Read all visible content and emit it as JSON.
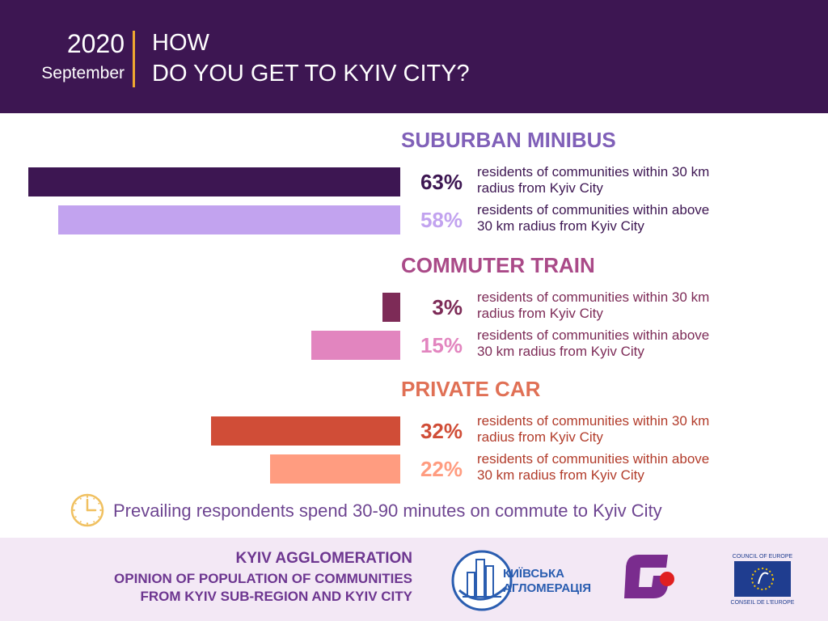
{
  "header": {
    "year": "2020",
    "month": "September",
    "title_line1": "HOW",
    "title_line2": "DO YOU GET TO KYIV CITY?"
  },
  "chart_data": {
    "type": "bar",
    "orientation": "horizontal",
    "groups": [
      {
        "title": "SUBURBAN MINIBUS",
        "title_color": "#8060b8",
        "items": [
          {
            "value": 63,
            "label": "63%",
            "desc1": "residents of communities within 30 km",
            "desc2": "radius from Kyiv City",
            "color": "#3d1652",
            "pct_color": "#3d1652",
            "desc_color": "#3d1652"
          },
          {
            "value": 58,
            "label": "58%",
            "desc1": "residents of communities within above",
            "desc2": "30 km radius from Kyiv City",
            "color": "#c2a3ef",
            "pct_color": "#c2a3ef",
            "desc_color": "#3d1652"
          }
        ]
      },
      {
        "title": "COMMUTER TRAIN",
        "title_color": "#aa4a88",
        "items": [
          {
            "value": 3,
            "label": "3%",
            "desc1": "residents of communities within 30 km",
            "desc2": "radius from Kyiv City",
            "color": "#7d2b57",
            "pct_color": "#7d2b57",
            "desc_color": "#7d2b57"
          },
          {
            "value": 15,
            "label": "15%",
            "desc1": "residents of communities within above",
            "desc2": "30 km radius from Kyiv City",
            "color": "#e285bf",
            "pct_color": "#e285bf",
            "desc_color": "#7d2b57"
          }
        ]
      },
      {
        "title": "PRIVATE CAR",
        "title_color": "#e07055",
        "items": [
          {
            "value": 32,
            "label": "32%",
            "desc1": "residents of communities within 30 km",
            "desc2": "radius from Kyiv City",
            "color": "#d04d37",
            "pct_color": "#d04d37",
            "desc_color": "#b23c2b"
          },
          {
            "value": 22,
            "label": "22%",
            "desc1": "residents of communities within above",
            "desc2": "30 km radius from Kyiv City",
            "color": "#ff9c80",
            "pct_color": "#ff9c80",
            "desc_color": "#b23c2b"
          }
        ]
      }
    ],
    "xlim": [
      0,
      100
    ]
  },
  "note": {
    "icon": "clock-icon",
    "text": "Prevailing respondents spend 30-90 minutes on commute to Kyiv City"
  },
  "footer": {
    "line1": "KYIV AGGLOMERATION",
    "line2": "OPINION OF POPULATION OF COMMUNITIES",
    "line3": "FROM KYIV SUB-REGION AND KYIV CITY",
    "logo_agglomeration_line1": "КИЇВСЬКА",
    "logo_agglomeration_line2": "АГЛОМЕРАЦІЯ",
    "logo_coe_top": "COUNCIL OF EUROPE",
    "logo_coe_bottom": "CONSEIL DE L'EUROPE"
  },
  "colors": {
    "header_bg": "#3d1652",
    "header_divider": "#f0a830",
    "footer_bg": "#f3e8f5",
    "footer_text": "#6d3690",
    "note_text": "#6e4591",
    "clock": "#f0c060"
  }
}
